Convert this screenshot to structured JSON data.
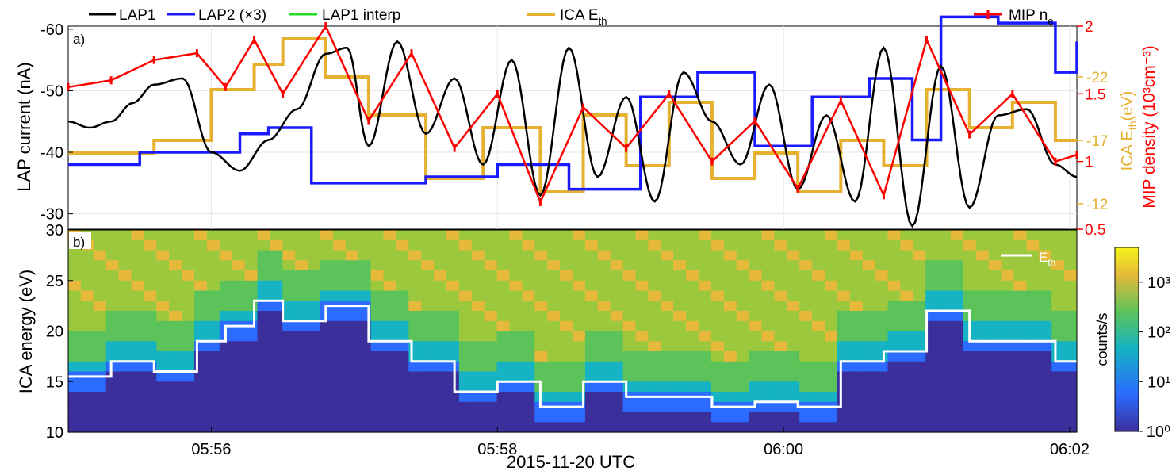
{
  "colors": {
    "lap1": "#000000",
    "lap2": "#1a1aff",
    "interp": "#22dd22",
    "ica": "#e6b030",
    "mip": "#ff0000",
    "white": "#ffffff"
  },
  "legend": {
    "lap1": "LAP1",
    "lap2": "LAP2 (×3)",
    "interp": "LAP1 interp",
    "ica_main": "ICA E",
    "ica_sub": "th",
    "mip_main": "MIP n",
    "mip_sub": "e"
  },
  "panel_a": {
    "label": "a)",
    "ylabel": "LAP current (nA)",
    "yticks": [
      "-60",
      "-50",
      "-40",
      "-30"
    ],
    "ica_axis_label_main": "ICA E",
    "ica_axis_label_sub": "th",
    "ica_axis_label_unit": "(eV)",
    "ica_ticks": [
      "-22",
      "-17",
      "-12"
    ],
    "mip_axis_label": "MIP density (10³cm⁻³)",
    "mip_ticks": [
      "2",
      "1.5",
      "1",
      "0.5"
    ]
  },
  "panel_b": {
    "label": "b)",
    "ylabel": "ICA energy (eV)",
    "yticks": [
      "30",
      "25",
      "20",
      "15",
      "10"
    ],
    "legend_main": "E",
    "legend_sub": "th",
    "colorbar_label": "counts/s",
    "colorbar_ticks": [
      "10³",
      "10²",
      "10¹",
      "10⁰"
    ]
  },
  "x_axis": {
    "ticks": [
      "05:56",
      "05:58",
      "06:00",
      "06:02"
    ],
    "label": "2015-11-20 UTC"
  },
  "chart_data": [
    {
      "type": "line",
      "panel": "a",
      "x_unit": "UTC time (minutes after 05:55)",
      "xlim": [
        0,
        7.05
      ],
      "ylabel": "LAP current (nA)",
      "ylim": [
        -27.5,
        -60.5
      ],
      "series": [
        {
          "name": "LAP1",
          "x": [
            0,
            0.15,
            0.3,
            0.45,
            0.6,
            0.8,
            1.0,
            1.2,
            1.4,
            1.6,
            1.8,
            1.95,
            2.1,
            2.3,
            2.5,
            2.7,
            2.9,
            3.1,
            3.3,
            3.5,
            3.7,
            3.9,
            4.1,
            4.3,
            4.5,
            4.7,
            4.9,
            5.1,
            5.3,
            5.5,
            5.7,
            5.9,
            6.1,
            6.3,
            6.5,
            6.7,
            6.9,
            7.05
          ],
          "y": [
            -45,
            -44,
            -45,
            -48,
            -51,
            -52,
            -40,
            -37,
            -42,
            -47,
            -56,
            -57,
            -41,
            -58,
            -43,
            -52,
            -38,
            -55,
            -33,
            -57,
            -36,
            -49,
            -32,
            -53,
            -45,
            -38,
            -51,
            -34,
            -46,
            -32,
            -57,
            -28,
            -54,
            -31,
            -46,
            -47,
            -38,
            -36
          ]
        },
        {
          "name": "LAP2 (×3)",
          "x": [
            0,
            0.5,
            1.0,
            1.2,
            1.4,
            1.7,
            2.5,
            3.0,
            3.5,
            4.0,
            4.4,
            4.8,
            5.2,
            5.6,
            5.9,
            6.1,
            6.5,
            6.9,
            7.05
          ],
          "y": [
            -38,
            -40,
            -40,
            -43,
            -44,
            -35,
            -36,
            -38,
            -34,
            -49,
            -53,
            -41,
            -49,
            -52,
            -42,
            -62,
            -61,
            -53,
            -58
          ]
        },
        {
          "name": "MIP n_e",
          "x": [
            0,
            0.3,
            0.6,
            0.9,
            1.1,
            1.3,
            1.5,
            1.8,
            2.1,
            2.4,
            2.7,
            3.0,
            3.3,
            3.6,
            3.9,
            4.2,
            4.5,
            4.8,
            5.1,
            5.4,
            5.7,
            6.0,
            6.3,
            6.6,
            6.9,
            7.05
          ],
          "y": [
            1.55,
            1.6,
            1.75,
            1.8,
            1.55,
            1.9,
            1.5,
            2.0,
            1.3,
            1.8,
            1.1,
            1.5,
            0.7,
            1.4,
            1.1,
            1.5,
            1.0,
            1.3,
            0.8,
            1.45,
            0.75,
            1.9,
            1.2,
            1.5,
            1.0,
            1.05
          ]
        },
        {
          "name": "ICA E_th",
          "x": [
            0,
            0.6,
            1.0,
            1.3,
            1.5,
            1.8,
            2.1,
            2.5,
            2.9,
            3.3,
            3.6,
            3.9,
            4.2,
            4.5,
            4.8,
            5.1,
            5.4,
            5.7,
            6.0,
            6.3,
            6.6,
            6.9,
            7.05
          ],
          "y": [
            16,
            17,
            21,
            23,
            25,
            22,
            19,
            14,
            18,
            13,
            19,
            15,
            20,
            14,
            16,
            13,
            17,
            15,
            21,
            18,
            20,
            17,
            17
          ]
        }
      ]
    },
    {
      "type": "heatmap",
      "panel": "b",
      "x_unit": "UTC time (minutes after 05:55)",
      "xlim": [
        0,
        7.05
      ],
      "ylabel": "ICA energy (eV)",
      "ylim": [
        10,
        30
      ],
      "colorbar": {
        "label": "counts/s",
        "scale": "log",
        "range": [
          1,
          5000
        ]
      },
      "series": [
        {
          "name": "E_th",
          "x": [
            0,
            0.3,
            0.6,
            0.9,
            1.1,
            1.3,
            1.5,
            1.8,
            2.1,
            2.4,
            2.7,
            3.0,
            3.3,
            3.6,
            3.9,
            4.2,
            4.5,
            4.8,
            5.1,
            5.4,
            5.7,
            6.0,
            6.3,
            6.6,
            6.9,
            7.05
          ],
          "y": [
            15.5,
            17,
            16,
            19,
            20.5,
            23,
            21,
            22.5,
            19,
            17,
            14,
            15,
            12.5,
            15,
            13.5,
            13.5,
            12.5,
            13,
            12.5,
            17,
            18,
            22,
            19,
            19,
            17,
            17
          ]
        }
      ]
    }
  ]
}
